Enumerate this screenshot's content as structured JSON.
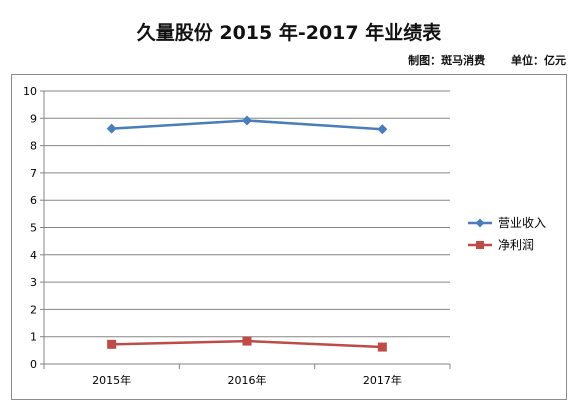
{
  "header": {
    "title": "久量股份 2015 年-2017 年业绩表",
    "maker": "制图：斑马消费",
    "unit": "单位：亿元"
  },
  "colors": {
    "revenue": "#4a7ebb",
    "net_profit": "#be4b48",
    "grid": "#868686"
  },
  "chart_data": {
    "type": "line",
    "title": "",
    "xlabel": "",
    "ylabel": "",
    "categories": [
      "2015年",
      "2016年",
      "2017年"
    ],
    "series": [
      {
        "name": "营业收入",
        "values": [
          8.62,
          8.92,
          8.6
        ],
        "marker": "diamond"
      },
      {
        "name": "净利润",
        "values": [
          0.72,
          0.84,
          0.62
        ],
        "marker": "square"
      }
    ],
    "ylim": [
      0,
      10
    ],
    "yticks": [
      0,
      1,
      2,
      3,
      4,
      5,
      6,
      7,
      8,
      9,
      10
    ],
    "grid": true,
    "legend": "right"
  }
}
